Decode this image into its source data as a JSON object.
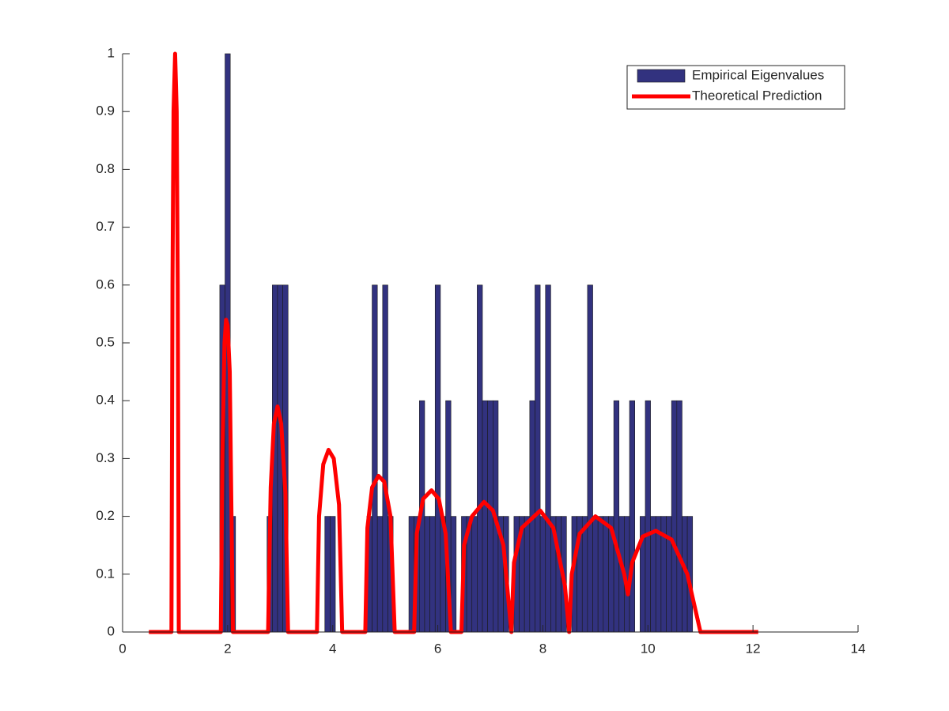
{
  "chart_data": {
    "type": "histogram",
    "xlim": [
      0,
      14
    ],
    "xticks": [
      0,
      2,
      4,
      6,
      8,
      10,
      12,
      14
    ],
    "ylim": [
      0,
      1
    ],
    "yticks": [
      0,
      0.1,
      0.2,
      0.3,
      0.4,
      0.5,
      0.6,
      0.7,
      0.8,
      0.9,
      1
    ],
    "legend": "upper right",
    "series": [
      {
        "name": "Empirical Eigenvalues",
        "type": "histogram",
        "color": "#32327f",
        "bins": [
          1.85,
          1.95,
          2.05,
          2.15,
          2.25,
          2.35,
          2.45,
          2.55,
          2.65,
          2.75,
          2.85,
          2.95,
          3.05,
          3.15,
          3.25,
          3.35,
          3.45,
          3.55,
          3.65,
          3.75,
          3.85,
          3.95,
          4.05,
          4.15,
          4.25,
          4.35,
          4.45,
          4.55,
          4.65,
          4.75,
          4.85,
          4.95,
          5.05,
          5.15,
          5.25,
          5.35,
          5.45,
          5.55,
          5.65,
          5.75,
          5.85,
          5.95,
          6.05,
          6.15,
          6.25,
          6.35,
          6.45,
          6.55,
          6.65,
          6.75,
          6.85,
          6.95,
          7.05,
          7.15,
          7.25,
          7.35,
          7.45,
          7.55,
          7.65,
          7.75,
          7.85,
          7.95,
          8.05,
          8.15,
          8.25,
          8.35,
          8.45,
          8.55,
          8.65,
          8.75,
          8.85,
          8.95,
          9.05,
          9.15,
          9.25,
          9.35,
          9.45,
          9.55,
          9.65,
          9.75,
          9.85,
          9.95,
          10.05,
          10.15,
          10.25,
          10.35,
          10.45,
          10.55,
          10.65,
          10.75,
          10.85
        ],
        "values": [
          0.6,
          1,
          0.2,
          0,
          0,
          0,
          0,
          0,
          0,
          0.2,
          0.6,
          0.6,
          0.6,
          0,
          0,
          0,
          0,
          0,
          0,
          0,
          0.2,
          0.2,
          0,
          0,
          0,
          0,
          0,
          0,
          0.2,
          0.6,
          0.2,
          0.6,
          0.2,
          0,
          0,
          0,
          0.2,
          0.2,
          0.4,
          0.2,
          0.2,
          0.6,
          0.2,
          0.4,
          0.2,
          0,
          0.2,
          0.2,
          0.2,
          0.6,
          0.4,
          0.4,
          0.4,
          0.2,
          0.2,
          0,
          0.2,
          0.2,
          0.2,
          0.4,
          0.6,
          0.2,
          0.6,
          0.2,
          0.2,
          0.2,
          0,
          0.2,
          0.2,
          0.2,
          0.6,
          0.2,
          0.2,
          0.2,
          0.2,
          0.4,
          0.2,
          0.2,
          0.4,
          0,
          0.2,
          0.4,
          0.2,
          0.2,
          0.2,
          0.2,
          0.4,
          0.4,
          0.2,
          0.2
        ]
      },
      {
        "name": "Theoretical Prediction",
        "type": "line",
        "color": "#ff0000",
        "x": [
          0.5,
          0.93,
          0.95,
          0.97,
          1.0,
          1.03,
          1.05,
          1.07,
          1.87,
          1.9,
          1.94,
          1.97,
          2.0,
          2.04,
          2.1,
          2.77,
          2.82,
          2.88,
          2.95,
          3.02,
          3.1,
          3.15,
          3.7,
          3.74,
          3.82,
          3.92,
          4.02,
          4.12,
          4.18,
          4.62,
          4.66,
          4.75,
          4.87,
          4.98,
          5.1,
          5.18,
          5.55,
          5.6,
          5.72,
          5.88,
          6.02,
          6.15,
          6.25,
          6.45,
          6.5,
          6.65,
          6.88,
          7.05,
          7.25,
          7.4,
          7.45,
          7.6,
          7.95,
          8.2,
          8.42,
          8.5,
          8.55,
          8.7,
          9.0,
          9.3,
          9.55,
          9.62,
          9.7,
          9.9,
          10.15,
          10.45,
          10.75,
          10.95,
          11.0,
          12.1
        ],
        "values": [
          0,
          0,
          0.6,
          0.9,
          1.0,
          0.9,
          0.6,
          0,
          0,
          0.3,
          0.5,
          0.54,
          0.53,
          0.45,
          0,
          0,
          0.25,
          0.36,
          0.39,
          0.36,
          0.24,
          0,
          0,
          0.2,
          0.29,
          0.315,
          0.3,
          0.22,
          0,
          0,
          0.18,
          0.25,
          0.27,
          0.26,
          0.2,
          0,
          0,
          0.17,
          0.23,
          0.245,
          0.23,
          0.17,
          0,
          0,
          0.15,
          0.2,
          0.225,
          0.21,
          0.15,
          0,
          0.12,
          0.18,
          0.21,
          0.18,
          0.08,
          0,
          0.1,
          0.17,
          0.2,
          0.18,
          0.1,
          0.065,
          0.12,
          0.165,
          0.175,
          0.16,
          0.1,
          0.02,
          0,
          0
        ]
      }
    ]
  }
}
